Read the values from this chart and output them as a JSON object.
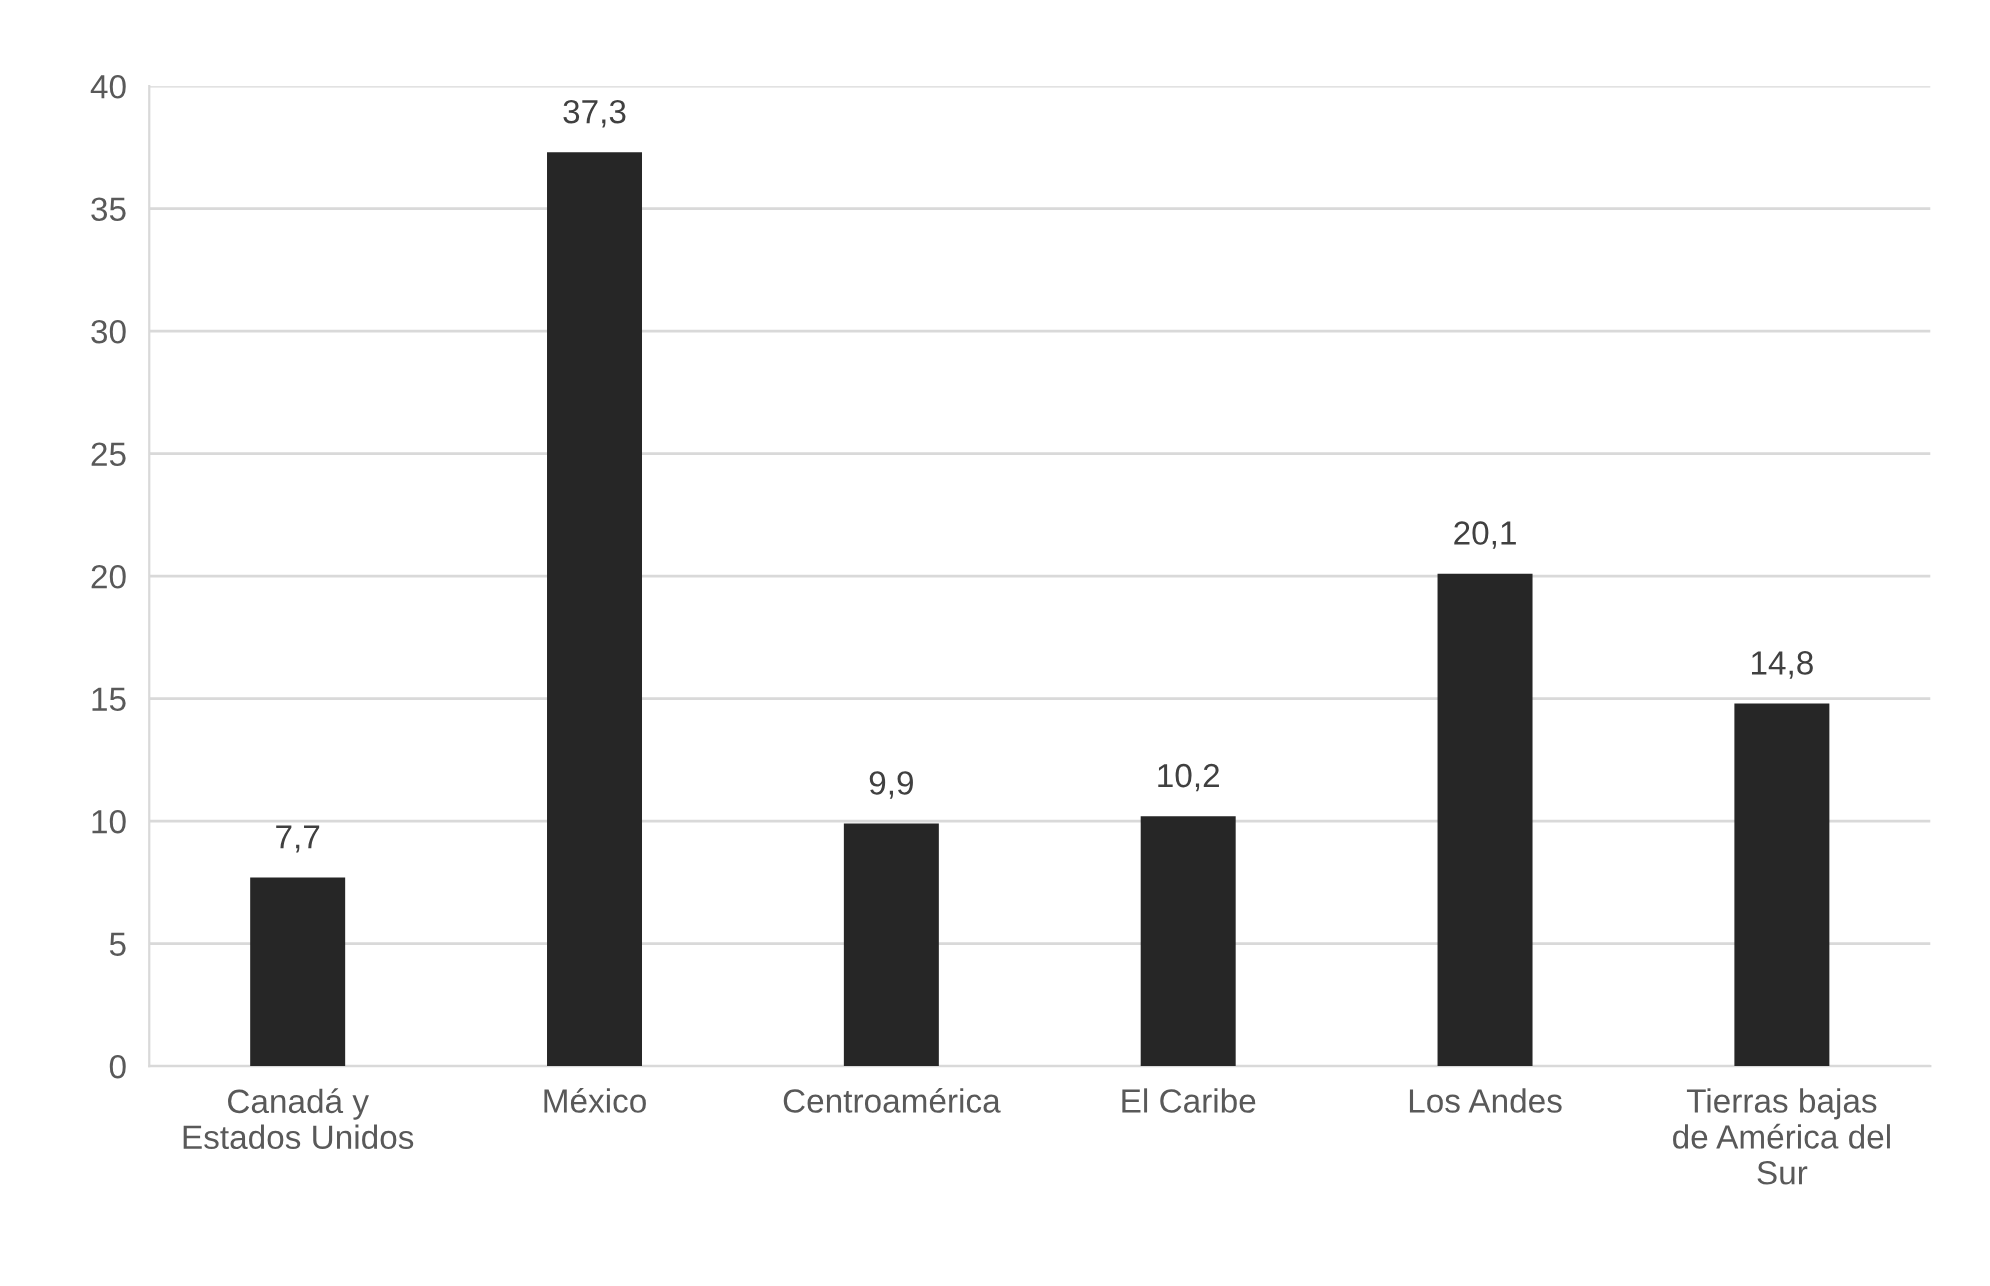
{
  "chart_data": {
    "type": "bar",
    "categories": [
      "Canadá y Estados Unidos",
      "México",
      "Centroamérica",
      "El Caribe",
      "Los Andes",
      "Tierras bajas de América del Sur"
    ],
    "values": [
      7.7,
      37.3,
      9.9,
      10.2,
      20.1,
      14.8
    ],
    "value_labels": [
      "7,7",
      "37,3",
      "9,9",
      "10,2",
      "20,1",
      "14,8"
    ],
    "color": "#262626",
    "ylim": [
      0,
      40
    ],
    "yticks": [
      0,
      5,
      10,
      15,
      20,
      25,
      30,
      35,
      40
    ],
    "grid": "y",
    "legend": false
  }
}
